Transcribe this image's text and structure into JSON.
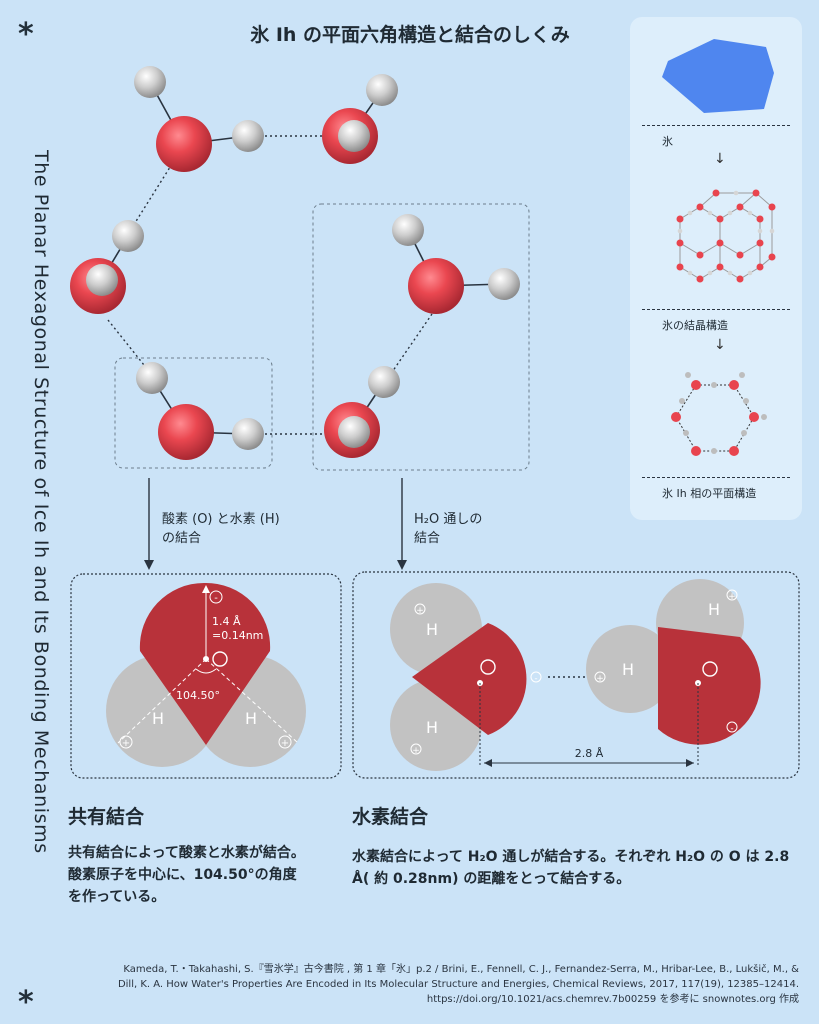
{
  "title": "氷 Ih の平面六角構造と結合のしくみ",
  "vertical_title": "The Planar Hexagonal Structure of Ice Ih and Its Bonding Mechanisms",
  "star": "*",
  "panel": {
    "ice": "氷",
    "crystal": "氷の結晶構造",
    "planar": "氷 Ih 相の平面構造"
  },
  "callout_left_line1": "酸素 (O) と水素 (H)",
  "callout_left_line2": "の結合",
  "callout_right_line1": "H₂O 通しの",
  "callout_right_line2": "結合",
  "covalent_diagram": {
    "bond_length_line1": "1.4 Å",
    "bond_length_line2": "=0.14nm",
    "angle": "104.50°",
    "oxygen": "O",
    "hydrogen": "H",
    "minus": "-",
    "plus": "+"
  },
  "hydrogen_diagram": {
    "distance": "2.8 Å",
    "oxygen": "O",
    "hydrogen": "H",
    "minus": "-",
    "plus": "+"
  },
  "covalent": {
    "heading": "共有結合",
    "text": "共有結合によって酸素と水素が結合。酸素原子を中心に、104.50°の角度を作っている。"
  },
  "hbond": {
    "heading": "水素結合",
    "text": "水素結合によって H₂O 通しが結合する。それぞれ H₂O の O は 2.8 Å( 約 0.28nm) の距離をとって結合する。"
  },
  "credit": "Kameda, T.・Takahashi, S.『雪氷学』古今書院 , 第 1 章「氷」p.2 / Brini, E., Fennell, C. J., Fernandez-Serra, M., Hribar-Lee, B., Lukšič, M., & Dill, K. A. How Water's Properties Are Encoded in Its Molecular Structure and Energies, Chemical Reviews, 2017, 117(19), 12385–12414. https://doi.org/10.1021/acs.chemrev.7b00259 を参考に snownotes.org 作成",
  "colors": {
    "background": "#cbe3f7",
    "oxygen": "#e8444e",
    "oxygen_dark": "#b8323a",
    "hydrogen": "#c2c2c2",
    "ice": "#4f86ef"
  }
}
